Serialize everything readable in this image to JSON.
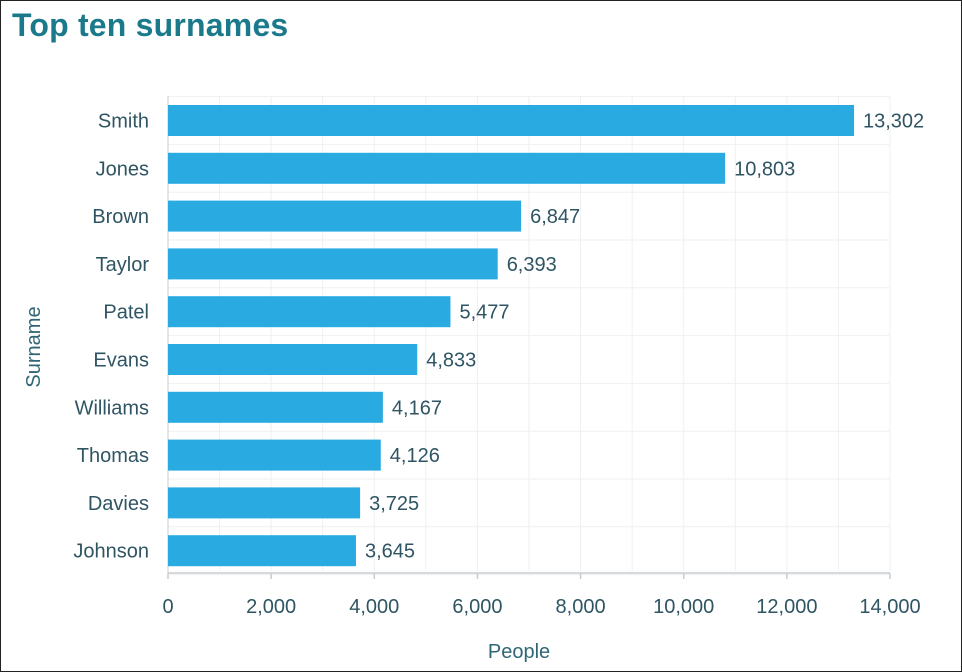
{
  "chart_data": {
    "type": "bar",
    "orientation": "horizontal",
    "title": "Top ten surnames",
    "xlabel": "People",
    "ylabel": "Surname",
    "categories": [
      "Smith",
      "Jones",
      "Brown",
      "Taylor",
      "Patel",
      "Evans",
      "Williams",
      "Thomas",
      "Davies",
      "Johnson"
    ],
    "values": [
      13302,
      10803,
      6847,
      6393,
      5477,
      4833,
      4167,
      4126,
      3725,
      3645
    ],
    "value_labels": [
      "13,302",
      "10,803",
      "6,847",
      "6,393",
      "5,477",
      "4,833",
      "4,167",
      "4,126",
      "3,725",
      "3,645"
    ],
    "xlim": [
      0,
      14000
    ],
    "xticks": [
      0,
      2000,
      4000,
      6000,
      8000,
      10000,
      12000,
      14000
    ],
    "xtick_labels": [
      "0",
      "2,000",
      "4,000",
      "6,000",
      "8,000",
      "10,000",
      "12,000",
      "14,000"
    ],
    "grid": true,
    "legend": "none",
    "colors": {
      "bar": "#29abe2",
      "title": "#1a7a8c",
      "text": "#2f5563",
      "grid": "#eef0f2",
      "axis": "#c8cdd2"
    }
  }
}
